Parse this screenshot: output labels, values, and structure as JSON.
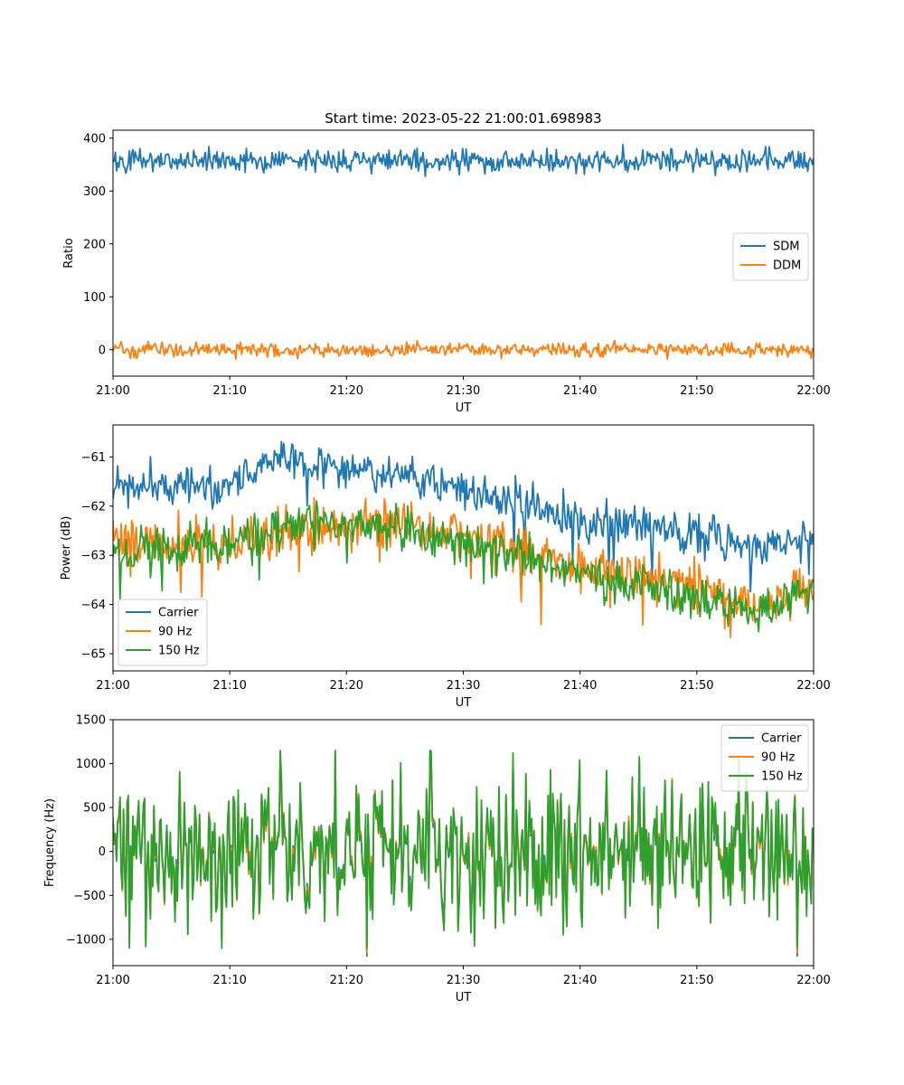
{
  "title": "Start time: 2023-05-22 21:00:01.698983",
  "x_ticks": [
    "21:00",
    "21:10",
    "21:20",
    "21:30",
    "21:40",
    "21:50",
    "22:00"
  ],
  "chart_data": [
    {
      "type": "line",
      "title": "Start time: 2023-05-22 21:00:01.698983",
      "xlabel": "UT",
      "ylabel": "Ratio",
      "xlim": [
        "21:00",
        "22:00"
      ],
      "ylim": [
        -50,
        415
      ],
      "yticks": [
        0,
        100,
        200,
        300,
        400
      ],
      "ytick_labels": [
        "0",
        "100",
        "200",
        "300",
        "400"
      ],
      "legend_position": "center-right",
      "series": [
        {
          "name": "SDM",
          "color": "#1f77b4",
          "mean": 358,
          "spread": 15,
          "min": 312,
          "max": 395
        },
        {
          "name": "DDM",
          "color": "#ff7f0e",
          "mean": 0,
          "spread": 9,
          "min": -30,
          "max": 22
        }
      ]
    },
    {
      "type": "line",
      "xlabel": "UT",
      "ylabel": "Power (dB)",
      "xlim": [
        "21:00",
        "22:00"
      ],
      "ylim": [
        -65.35,
        -60.35
      ],
      "yticks": [
        -65,
        -64,
        -63,
        -62,
        -61
      ],
      "ytick_labels": [
        "−65",
        "−64",
        "−63",
        "−62",
        "−61"
      ],
      "legend_position": "lower-left",
      "series": [
        {
          "name": "Carrier",
          "color": "#1f77b4",
          "trend": [
            [
              0,
              -61.6
            ],
            [
              10,
              -61.6
            ],
            [
              14,
              -61.0
            ],
            [
              20,
              -61.3
            ],
            [
              30,
              -61.6
            ],
            [
              40,
              -62.3
            ],
            [
              50,
              -62.6
            ],
            [
              55,
              -62.9
            ],
            [
              60,
              -62.6
            ]
          ],
          "spread": 0.35
        },
        {
          "name": "90 Hz",
          "color": "#ff7f0e",
          "trend": [
            [
              0,
              -62.7
            ],
            [
              10,
              -62.8
            ],
            [
              15,
              -62.4
            ],
            [
              25,
              -62.4
            ],
            [
              30,
              -62.6
            ],
            [
              40,
              -63.3
            ],
            [
              50,
              -63.6
            ],
            [
              55,
              -64.0
            ],
            [
              60,
              -63.6
            ]
          ],
          "spread": 0.4
        },
        {
          "name": "150 Hz",
          "color": "#2ca02c",
          "trend": [
            [
              0,
              -62.9
            ],
            [
              10,
              -62.8
            ],
            [
              15,
              -62.3
            ],
            [
              25,
              -62.5
            ],
            [
              30,
              -62.8
            ],
            [
              40,
              -63.3
            ],
            [
              50,
              -63.9
            ],
            [
              55,
              -64.2
            ],
            [
              60,
              -63.7
            ]
          ],
          "spread": 0.4
        }
      ]
    },
    {
      "type": "line",
      "xlabel": "UT",
      "ylabel": "Frequency (Hz)",
      "xlim": [
        "21:00",
        "22:00"
      ],
      "ylim": [
        -1300,
        1500
      ],
      "yticks": [
        -1000,
        -500,
        0,
        500,
        1000,
        1500
      ],
      "ytick_labels": [
        "−1000",
        "−500",
        "0",
        "500",
        "1000",
        "1500"
      ],
      "legend_position": "upper-right",
      "series": [
        {
          "name": "Carrier",
          "color": "#1f77b4",
          "mean": 0,
          "spread": 380,
          "min": -1190,
          "max": 1100
        },
        {
          "name": "90 Hz",
          "color": "#ff7f0e",
          "mean": 0,
          "spread": 380,
          "min": -1150,
          "max": 1120
        },
        {
          "name": "150 Hz",
          "color": "#2ca02c",
          "mean": 0,
          "spread": 380,
          "min": -1100,
          "max": 1150
        }
      ]
    }
  ]
}
